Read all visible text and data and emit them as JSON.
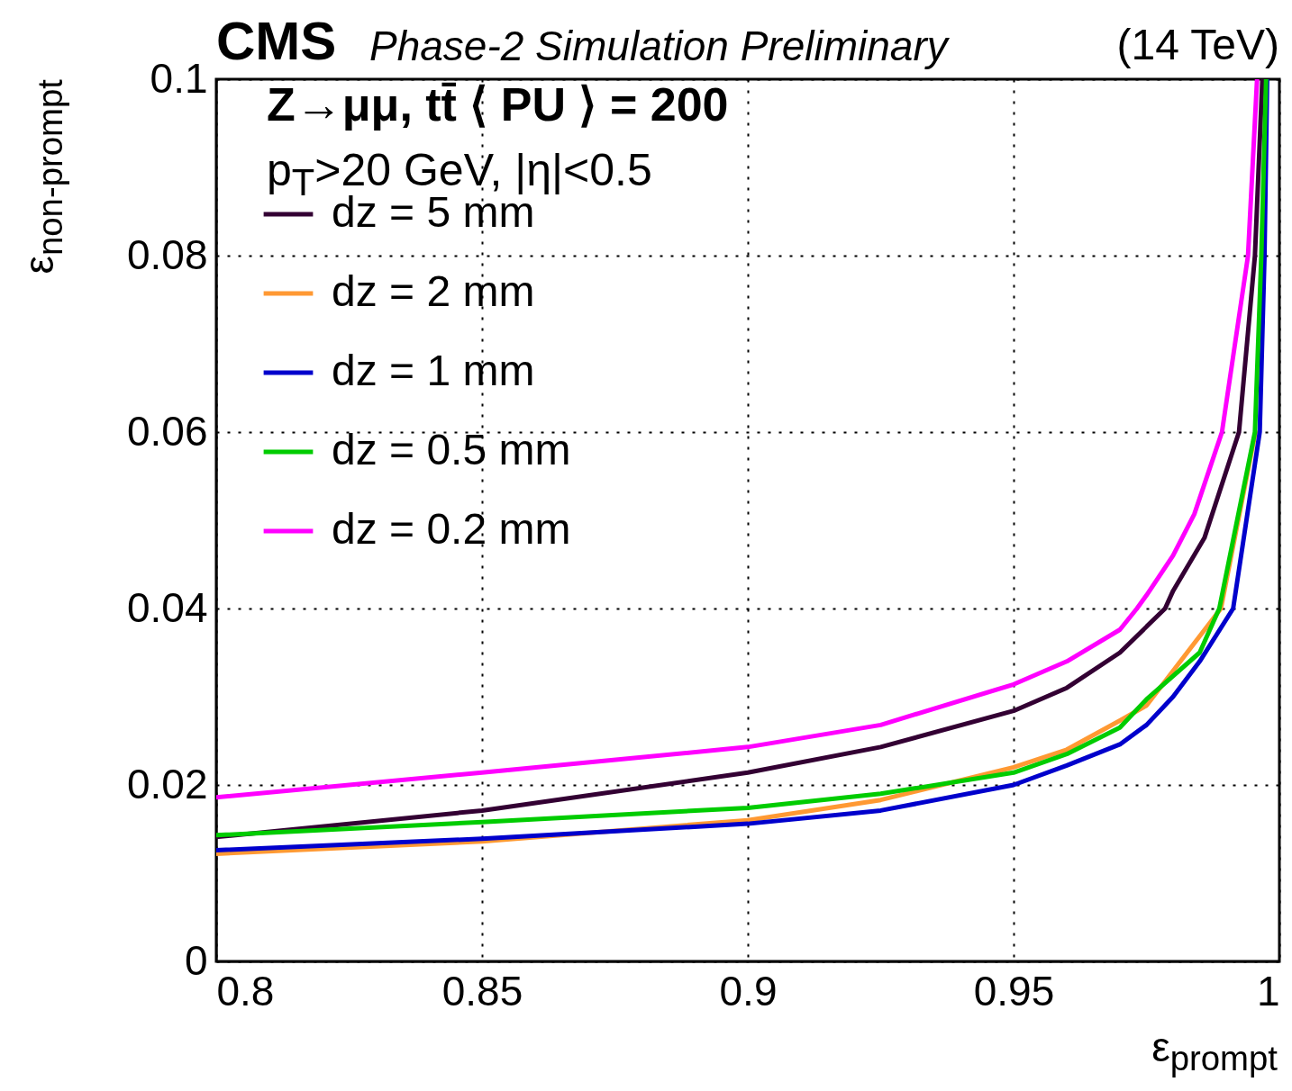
{
  "chart_data": {
    "type": "line",
    "title": "CMS",
    "subtitle": "Phase-2 Simulation Preliminary",
    "xlabel": "ε$_{prompt}$",
    "ylabel": "ε$_{non-prompt}$",
    "annotations": [
      "(14 TeV)",
      "Z→μμ, tt̄   ⟨ PU ⟩ = 200",
      "p$_{T}$>20 GeV, |η|<0.5"
    ],
    "xlim": [
      0.8,
      1
    ],
    "xticks": [
      0.8,
      0.85,
      0.9,
      0.95,
      1
    ],
    "ylim": [
      0,
      0.1
    ],
    "yticks": [
      0,
      0.02,
      0.04,
      0.06,
      0.08,
      0.1
    ],
    "grid": true,
    "legend": "top left",
    "line_style": "solid",
    "marker": "none",
    "series": [
      {
        "name": "dz = 5 mm",
        "color": "#330033",
        "x": [
          0.8,
          0.85,
          0.9,
          0.925,
          0.95,
          0.96,
          0.97,
          0.9785,
          0.98,
          0.9859,
          0.9924,
          0.9954,
          0.9968
        ],
        "values": [
          0.0141,
          0.0171,
          0.0214,
          0.0243,
          0.0284,
          0.031,
          0.035,
          0.04,
          0.042,
          0.048,
          0.06,
          0.08,
          0.1
        ]
      },
      {
        "name": "dz = 2 mm",
        "color": "#ff9933",
        "x": [
          0.8,
          0.85,
          0.9,
          0.925,
          0.95,
          0.96,
          0.97,
          0.975,
          0.989,
          0.9955
        ],
        "values": [
          0.0122,
          0.0136,
          0.016,
          0.0183,
          0.022,
          0.024,
          0.0273,
          0.029,
          0.04,
          0.06
        ]
      },
      {
        "name": "dz = 1 mm",
        "color": "#0000cc",
        "x": [
          0.8,
          0.85,
          0.9,
          0.925,
          0.95,
          0.96,
          0.97,
          0.975,
          0.98,
          0.985,
          0.9913,
          0.9963,
          0.9972,
          0.9977
        ],
        "values": [
          0.0126,
          0.0139,
          0.0156,
          0.0171,
          0.02,
          0.0222,
          0.0246,
          0.0268,
          0.03,
          0.034,
          0.04,
          0.06,
          0.08,
          0.1
        ]
      },
      {
        "name": "dz = 0.5 mm",
        "color": "#00cc00",
        "x": [
          0.8,
          0.85,
          0.9,
          0.925,
          0.95,
          0.96,
          0.97,
          0.975,
          0.985,
          0.9887,
          0.9954,
          0.9966,
          0.9975
        ],
        "values": [
          0.0143,
          0.0158,
          0.0174,
          0.019,
          0.0214,
          0.0235,
          0.0265,
          0.0297,
          0.035,
          0.04,
          0.06,
          0.08,
          0.1
        ]
      },
      {
        "name": "dz = 0.2 mm",
        "color": "#ff00ff",
        "x": [
          0.8,
          0.85,
          0.9,
          0.925,
          0.95,
          0.96,
          0.97,
          0.9732,
          0.975,
          0.98,
          0.984,
          0.9892,
          0.9941,
          0.9958
        ],
        "values": [
          0.0186,
          0.0214,
          0.0243,
          0.0268,
          0.0314,
          0.034,
          0.0376,
          0.04,
          0.0415,
          0.046,
          0.0507,
          0.06,
          0.08,
          0.1
        ]
      }
    ]
  }
}
